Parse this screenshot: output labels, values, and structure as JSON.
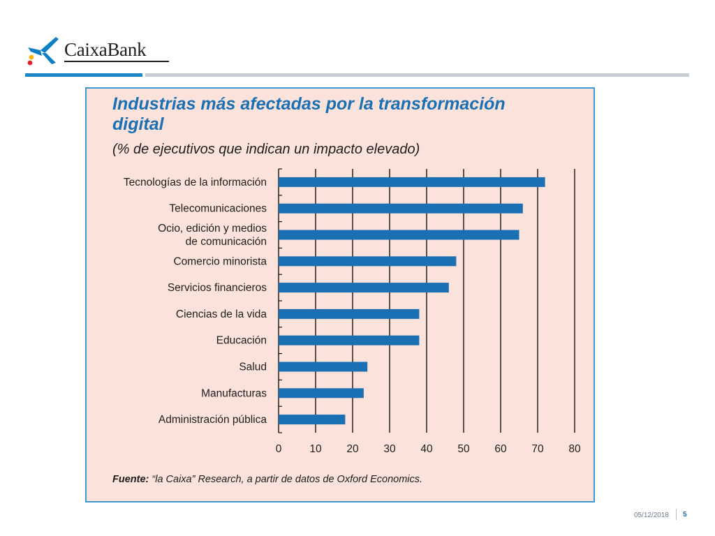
{
  "brand": {
    "name": "CaixaBank",
    "colors": {
      "blue": "#1b84c4",
      "star_blue": "#0f7fc3",
      "red_dot": "#e4202c",
      "yellow_dot": "#f7b512"
    }
  },
  "chart_data": {
    "type": "bar",
    "orientation": "horizontal",
    "title": "Industrias más afectadas por la transformación digital",
    "subtitle": "(% de ejecutivos que indican un impacto elevado)",
    "categories": [
      "Tecnologías de la información",
      "Telecomunicaciones",
      "Ocio, edición y medios de comunicación",
      "Comercio minorista",
      "Servicios financieros",
      "Ciencias de la vida",
      "Educación",
      "Salud",
      "Manufacturas",
      "Administración pública"
    ],
    "category_lines": [
      [
        "Tecnologías de la información"
      ],
      [
        "Telecomunicaciones"
      ],
      [
        "Ocio, edición y medios",
        "de comunicación"
      ],
      [
        "Comercio minorista"
      ],
      [
        "Servicios financieros"
      ],
      [
        "Ciencias de la vida"
      ],
      [
        "Educación"
      ],
      [
        "Salud"
      ],
      [
        "Manufacturas"
      ],
      [
        "Administración pública"
      ]
    ],
    "values": [
      72,
      66,
      65,
      48,
      46,
      38,
      38,
      24,
      23,
      18
    ],
    "xlim": [
      0,
      80
    ],
    "xticks": [
      0,
      10,
      20,
      30,
      40,
      50,
      60,
      70,
      80
    ],
    "grid": true,
    "bar_color": "#1b6fb3",
    "background": "#fbe3dc"
  },
  "source": {
    "label": "Fuente:",
    "text": " “la Caixa” Research, a partir de datos de Oxford Economics."
  },
  "footer": {
    "date": "05/12/2018",
    "page": "5"
  }
}
